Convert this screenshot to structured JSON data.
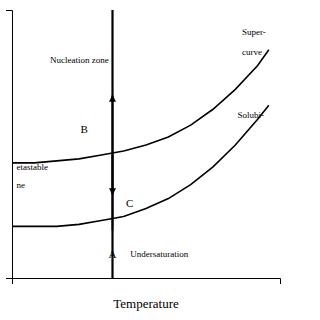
{
  "chart_data": {
    "type": "line",
    "x_label": "Temperature",
    "xlim": [
      -0.15,
      1.05
    ],
    "ylim": [
      0.2,
      1.55
    ],
    "tick_labels": false,
    "series": [
      {
        "color": "black",
        "x": [
          -0.15,
          -0.05,
          0.05,
          0.15,
          0.25,
          0.35,
          0.45,
          0.55,
          0.65,
          0.75,
          0.85,
          0.95,
          1.0
        ],
        "values": [
          0.78,
          0.78,
          0.79,
          0.8,
          0.82,
          0.84,
          0.87,
          0.91,
          0.97,
          1.05,
          1.15,
          1.27,
          1.35
        ]
      },
      {
        "color": "black",
        "x": [
          -0.15,
          -0.05,
          0.05,
          0.15,
          0.25,
          0.35,
          0.45,
          0.55,
          0.65,
          0.75,
          0.85,
          0.95,
          1.0
        ],
        "values": [
          0.46,
          0.46,
          0.46,
          0.47,
          0.49,
          0.51,
          0.55,
          0.6,
          0.67,
          0.76,
          0.87,
          1.0,
          1.07
        ]
      }
    ],
    "vline": {
      "x": 0.3,
      "color": "black"
    },
    "arrows": [
      {
        "x": 0.3,
        "from": 0.44,
        "to": 1.12
      },
      {
        "x": 0.3,
        "from": 0.82,
        "to": 0.62
      }
    ],
    "annotations": [
      {
        "text": "A",
        "x": 0.3,
        "y": 0.34
      },
      {
        "text": "B",
        "x": 0.19,
        "y": 0.95
      },
      {
        "text": "C",
        "x": 0.36,
        "y": 0.6
      },
      {
        "text": "Nucleation zone",
        "x": 0.02,
        "y": 1.3
      },
      {
        "text": "etastable",
        "x": -0.13,
        "y": 0.76
      },
      {
        "text": "ne",
        "x": -0.13,
        "y": 0.67
      },
      {
        "text": "Undersaturation",
        "x": 0.38,
        "y": 0.32
      },
      {
        "text": "Super-",
        "x": 0.88,
        "y": 1.44
      },
      {
        "text": "curve",
        "x": 0.88,
        "y": 1.34
      },
      {
        "text": "Solubi-",
        "x": 0.86,
        "y": 1.02
      }
    ]
  }
}
